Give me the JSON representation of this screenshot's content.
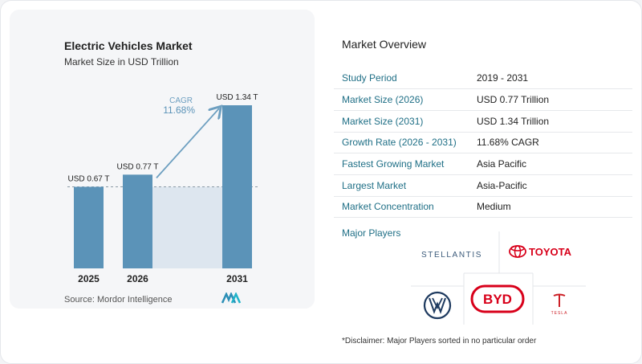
{
  "chart_data": {
    "type": "bar",
    "title": "Electric Vehicles Market",
    "subtitle": "Market Size in USD Trillion",
    "categories": [
      "2025",
      "2026",
      "2031"
    ],
    "values": [
      0.67,
      0.77,
      1.34
    ],
    "data_labels": [
      "USD 0.67 T",
      "USD 0.77 T",
      "USD 1.34 T"
    ],
    "cagr_label": "CAGR",
    "cagr_value": "11.68%",
    "ylim": [
      0,
      1.34
    ],
    "grid": false,
    "bar_color": "#5b93b8",
    "shade_color": "#dde6ef",
    "arrow_color": "#6d9fc0",
    "source": "Source: Mordor Intelligence"
  },
  "overview": {
    "title": "Market Overview",
    "rows": [
      {
        "key": "Study Period",
        "value": "2019 - 2031"
      },
      {
        "key": "Market Size (2026)",
        "value": "USD 0.77 Trillion"
      },
      {
        "key": "Market Size (2031)",
        "value": "USD 1.34 Trillion"
      },
      {
        "key": "Growth Rate (2026 - 2031)",
        "value": "11.68% CAGR"
      },
      {
        "key": "Fastest Growing Market",
        "value": "Asia Pacific"
      },
      {
        "key": "Largest Market",
        "value": "Asia-Pacific"
      },
      {
        "key": "Market Concentration",
        "value": "Medium"
      }
    ]
  },
  "players": {
    "title": "Major Players",
    "logos": [
      {
        "name": "stellantis-logo",
        "text": "STELLANTIS"
      },
      {
        "name": "toyota-logo",
        "text": "TOYOTA"
      },
      {
        "name": "volkswagen-logo"
      },
      {
        "name": "byd-logo",
        "text": "BYD"
      },
      {
        "name": "tesla-logo",
        "text": "TESLA"
      }
    ],
    "accent": {
      "toyota": "#d8001a",
      "byd": "#d8001a",
      "tesla": "#cc2027",
      "vw": "#1e3a5f"
    }
  },
  "disclaimer": "*Disclaimer: Major Players sorted in no particular order"
}
